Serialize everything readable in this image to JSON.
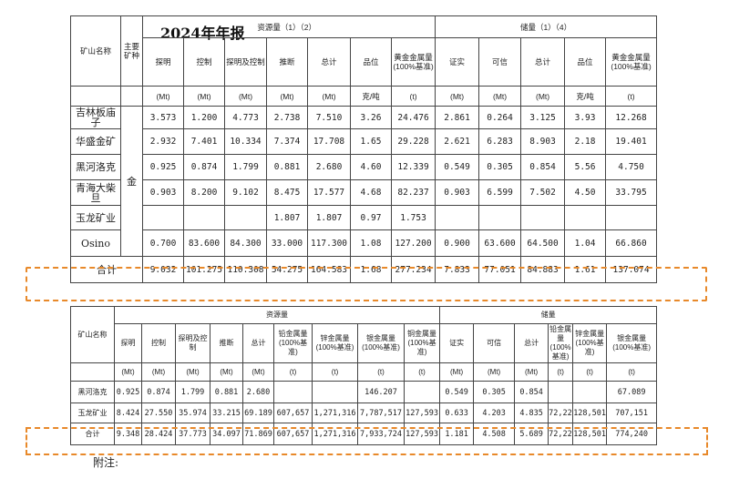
{
  "title": "2024年年报",
  "table1": {
    "col_mine": "矿山名称",
    "col_mineral": "主要矿种",
    "group_resource": "资源量（1）（2）",
    "group_reserve": "储量（1）（4）",
    "resource_cols": [
      "探明",
      "控制",
      "探明及控制",
      "推断",
      "总计",
      "品位",
      "黄金金属量(100%基准)"
    ],
    "reserve_cols": [
      "证实",
      "可信",
      "总计",
      "品位",
      "黄金金属量(100%基准)"
    ],
    "units": [
      "(Mt)",
      "(Mt)",
      "(Mt)",
      "(Mt)",
      "(Mt)",
      "克/吨",
      "(t)",
      "(Mt)",
      "(Mt)",
      "(Mt)",
      "克/吨",
      "(t)"
    ],
    "mineral": "金",
    "rows": [
      {
        "name": "吉林板庙子",
        "vals": [
          "3.573",
          "1.200",
          "4.773",
          "2.738",
          "7.510",
          "3.26",
          "24.476",
          "2.861",
          "0.264",
          "3.125",
          "3.93",
          "12.268"
        ]
      },
      {
        "name": "华盛金矿",
        "vals": [
          "2.932",
          "7.401",
          "10.334",
          "7.374",
          "17.708",
          "1.65",
          "29.228",
          "2.621",
          "6.283",
          "8.903",
          "2.18",
          "19.401"
        ]
      },
      {
        "name": "黑河洛克",
        "vals": [
          "0.925",
          "0.874",
          "1.799",
          "0.881",
          "2.680",
          "4.60",
          "12.339",
          "0.549",
          "0.305",
          "0.854",
          "5.56",
          "4.750"
        ]
      },
      {
        "name": "青海大柴旦",
        "vals": [
          "0.903",
          "8.200",
          "9.102",
          "8.475",
          "17.577",
          "4.68",
          "82.237",
          "0.903",
          "6.599",
          "7.502",
          "4.50",
          "33.795"
        ]
      },
      {
        "name": "玉龙矿业",
        "vals": [
          "",
          "",
          "",
          "1.807",
          "1.807",
          "0.97",
          "1.753",
          "",
          "",
          "",
          "",
          ""
        ]
      },
      {
        "name": "Osino",
        "vals": [
          "0.700",
          "83.600",
          "84.300",
          "33.000",
          "117.300",
          "1.08",
          "127.200",
          "0.900",
          "63.600",
          "64.500",
          "1.04",
          "66.860"
        ]
      }
    ],
    "total": {
      "name": "合计",
      "vals": [
        "9.032",
        "101.275",
        "110.308",
        "54.275",
        "164.583",
        "1.68",
        "277.234",
        "7.833",
        "77.051",
        "84.883",
        "1.61",
        "137.074"
      ]
    }
  },
  "table2": {
    "col_mine": "矿山名称",
    "group_resource": "资源量",
    "group_reserve": "储量",
    "resource_cols": [
      "探明",
      "控制",
      "探明及控制",
      "推断",
      "总计",
      "铅金属量(100%基准)",
      "锌金属量(100%基准)",
      "银金属量(100%基准)",
      "铜金属量(100%基准)"
    ],
    "reserve_cols": [
      "证实",
      "可信",
      "总计",
      "铅金属量(100%基准)",
      "锌金属量(100%基准)",
      "银金属量(100%基准)"
    ],
    "units": [
      "(Mt)",
      "(Mt)",
      "(Mt)",
      "(Mt)",
      "(Mt)",
      "(t)",
      "(t)",
      "(t)",
      "(t)",
      "(Mt)",
      "(Mt)",
      "(Mt)",
      "(t)",
      "(t)",
      "(t)"
    ],
    "rows": [
      {
        "name": "黑河洛克",
        "vals": [
          "0.925",
          "0.874",
          "1.799",
          "0.881",
          "2.680",
          "",
          "",
          "146.207",
          "",
          "0.549",
          "0.305",
          "0.854",
          "",
          "",
          "67.089"
        ]
      },
      {
        "name": "玉龙矿业",
        "vals": [
          "8.424",
          "27.550",
          "35.974",
          "33.215",
          "69.189",
          "607,657",
          "1,271,316",
          "7,787,517",
          "127,593",
          "0.633",
          "4.203",
          "4.835",
          "72,227",
          "128,501",
          "707,151"
        ]
      }
    ],
    "total": {
      "name": "合计",
      "vals": [
        "9.348",
        "28.424",
        "37.773",
        "34.097",
        "71.869",
        "607,657",
        "1,271,316",
        "7,933,724",
        "127,593",
        "1.181",
        "4.508",
        "5.689",
        "72,227",
        "128,501",
        "774,240"
      ]
    }
  },
  "note": "附注:"
}
